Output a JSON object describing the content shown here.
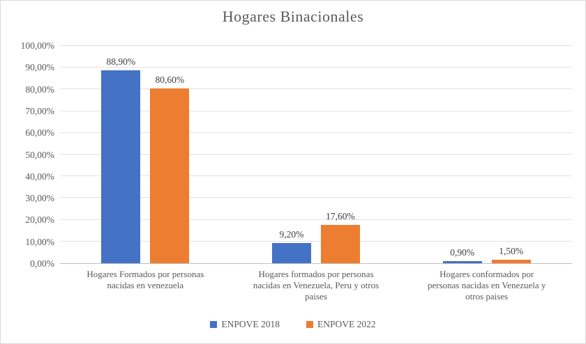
{
  "chart_data": {
    "type": "bar",
    "title": "Hogares Binacionales",
    "categories": [
      "Hogares Formados por personas nacidas en venezuela",
      "Hogares formados por personas nacidas en Venezuela, Peru y otros paises",
      "Hogares conformados por personas nacidas en Venezuela y otros paises"
    ],
    "category_lines": [
      [
        "Hogares Formados por personas",
        "nacidas en venezuela"
      ],
      [
        "Hogares formados por personas",
        "nacidas en Venezuela, Peru y otros",
        "paises"
      ],
      [
        "Hogares conformados por",
        "personas nacidas en Venezuela y",
        "otros paises"
      ]
    ],
    "series": [
      {
        "name": "ENPOVE 2018",
        "color": "#4472C4",
        "values": [
          88.9,
          9.2,
          0.9
        ],
        "labels": [
          "88,90%",
          "9,20%",
          "0,90%"
        ]
      },
      {
        "name": "ENPOVE 2022",
        "color": "#ED7D31",
        "values": [
          80.6,
          17.6,
          1.5
        ],
        "labels": [
          "80,60%",
          "17,60%",
          "1,50%"
        ]
      }
    ],
    "y_ticks": [
      "0,00%",
      "10,00%",
      "20,00%",
      "30,00%",
      "40,00%",
      "50,00%",
      "60,00%",
      "70,00%",
      "80,00%",
      "90,00%",
      "100,00%"
    ],
    "ylim": [
      0,
      100
    ],
    "grid": true,
    "legend_position": "bottom",
    "colors": {
      "title_text": "#595959",
      "axis_text": "#595959",
      "data_label_text": "#404040",
      "gridline": "#E2E2E2",
      "axis_line": "#BFBFBF",
      "series_2018": "#4472C4",
      "series_2022": "#ED7D31"
    }
  }
}
